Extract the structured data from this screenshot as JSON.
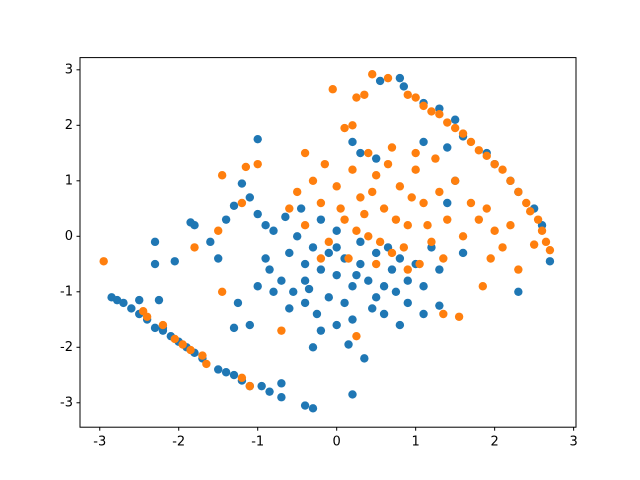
{
  "chart_data": {
    "type": "scatter",
    "xlim": [
      -3.25,
      3.03
    ],
    "ylim": [
      -3.44,
      3.22
    ],
    "xticks": [
      -3,
      -2,
      -1,
      0,
      1,
      2,
      3
    ],
    "yticks": [
      -3,
      -2,
      -1,
      0,
      1,
      2,
      3
    ],
    "grid": false,
    "series": [
      {
        "color": "#1f77b4",
        "x": [
          -2.85,
          -2.78,
          -2.7,
          -2.6,
          -2.5,
          -2.4,
          -2.3,
          -2.2,
          -2.1,
          -2.0,
          -1.9,
          -1.8,
          -1.7,
          -1.5,
          -1.4,
          -1.3,
          -1.2,
          -1.1,
          -0.95,
          -0.85,
          -0.7,
          -0.3,
          -0.4,
          -0.7,
          -2.5,
          -2.25,
          -2.2,
          -2.3,
          -2.3,
          -2.05,
          -1.8,
          -1.85,
          -1.6,
          -1.5,
          -1.4,
          -1.3,
          -1.2,
          -1.1,
          -1.0,
          -1.0,
          -0.9,
          -0.85,
          -1.25,
          -1.3,
          -1.1,
          -0.8,
          -0.6,
          -0.4,
          -0.2,
          0.0,
          0.2,
          0.35,
          0.2,
          0.15,
          0.6,
          0.8,
          1.1,
          1.3,
          2.3,
          2.7,
          -0.3,
          -0.4,
          -0.6,
          -0.5,
          -0.4,
          -0.3,
          -0.2,
          -0.1,
          0.0,
          0.1,
          0.2,
          0.3,
          0.4,
          0.5,
          0.6,
          0.7,
          0.8,
          0.9,
          1.0,
          1.1,
          -0.7,
          -0.8,
          -0.65,
          -0.45,
          -0.2,
          0.0,
          0.3,
          -0.1,
          0.1,
          0.5,
          0.9,
          1.2,
          1.3,
          1.4,
          1.5,
          1.6,
          -0.55,
          -0.9,
          -1.0,
          -0.25,
          0.45,
          0.75,
          0.0,
          -0.35,
          0.25,
          0.65,
          0.55,
          0.8,
          0.85,
          1.1,
          1.3,
          1.5,
          1.6,
          1.9,
          2.0,
          2.2,
          2.3,
          2.5,
          2.6,
          1.4,
          1.1,
          0.3,
          0.2,
          0.5
        ],
        "values": [
          -1.1,
          -1.15,
          -1.2,
          -1.3,
          -1.4,
          -1.5,
          -1.65,
          -1.7,
          -1.8,
          -1.9,
          -2.0,
          -2.1,
          -2.2,
          -2.4,
          -2.45,
          -2.5,
          -2.6,
          -2.7,
          -2.7,
          -2.8,
          -2.9,
          -3.1,
          -3.05,
          -2.65,
          -1.15,
          -1.15,
          -1.65,
          -0.5,
          -0.1,
          -0.45,
          0.2,
          0.25,
          -0.1,
          -0.4,
          0.3,
          0.55,
          0.95,
          0.7,
          1.75,
          0.4,
          0.2,
          -0.6,
          -1.2,
          -1.65,
          -1.6,
          -1.0,
          -1.3,
          -1.2,
          -1.7,
          -1.6,
          -1.5,
          -2.2,
          -2.85,
          -1.95,
          -1.4,
          -1.6,
          -1.4,
          -1.25,
          -1.0,
          -0.45,
          -2.0,
          -0.8,
          -0.3,
          0.0,
          -0.5,
          -0.2,
          -0.6,
          -0.3,
          -0.7,
          -0.4,
          -0.9,
          -0.5,
          -0.8,
          -0.3,
          -0.9,
          -0.6,
          -0.4,
          -0.8,
          -0.5,
          -0.9,
          -0.8,
          0.1,
          0.35,
          0.5,
          0.3,
          0.1,
          -0.1,
          -1.1,
          -1.2,
          -1.1,
          -1.2,
          -0.2,
          -0.6,
          0.6,
          1.0,
          -0.3,
          -1.0,
          -0.4,
          -0.9,
          -1.4,
          -1.3,
          -1.0,
          -0.2,
          -0.95,
          -0.7,
          -0.2,
          2.8,
          2.85,
          2.7,
          2.4,
          2.3,
          2.1,
          1.8,
          1.5,
          1.3,
          1.0,
          0.8,
          0.5,
          0.2,
          1.6,
          1.7,
          1.5,
          1.7,
          1.4
        ]
      },
      {
        "color": "#ff7f0e",
        "x": [
          0.45,
          0.65,
          0.9,
          1.0,
          1.1,
          1.2,
          1.3,
          1.4,
          1.5,
          1.6,
          1.7,
          1.8,
          1.9,
          2.0,
          2.1,
          2.2,
          2.3,
          2.4,
          2.45,
          2.55,
          2.6,
          2.65,
          2.7,
          2.5,
          0.35,
          0.25,
          -2.45,
          -2.4,
          -2.2,
          -2.05,
          -1.95,
          -1.85,
          -1.7,
          -1.65,
          -1.1,
          -1.2,
          -2.95,
          -0.05,
          -1.45,
          -0.7,
          0.25,
          1.85,
          1.55,
          1.35,
          2.3,
          1.95,
          -1.5,
          -1.45,
          -1.15,
          -1.0,
          -0.4,
          0.1,
          0.2,
          -1.8,
          -1.2,
          -0.6,
          -0.5,
          -0.4,
          -0.3,
          -0.2,
          -0.1,
          0.0,
          0.1,
          0.2,
          0.3,
          0.4,
          0.5,
          0.6,
          0.7,
          0.8,
          0.9,
          1.0,
          1.1,
          1.2,
          1.3,
          1.4,
          1.5,
          1.6,
          1.7,
          1.8,
          1.9,
          2.0,
          0.15,
          0.35,
          0.55,
          0.75,
          0.95,
          1.15,
          0.45,
          0.65,
          0.85,
          1.05,
          0.25,
          0.05,
          -0.15,
          0.4,
          0.7,
          1.0,
          1.25,
          0.9,
          0.5,
          -0.2,
          1.35,
          2.1,
          2.2
        ],
        "values": [
          2.92,
          2.85,
          2.55,
          2.5,
          2.35,
          2.25,
          2.2,
          2.05,
          1.95,
          1.85,
          1.7,
          1.55,
          1.45,
          1.3,
          1.2,
          1.0,
          0.8,
          0.6,
          0.45,
          0.3,
          0.1,
          -0.1,
          -0.25,
          -0.15,
          2.55,
          2.5,
          -1.35,
          -1.45,
          -1.6,
          -1.85,
          -1.95,
          -2.05,
          -2.15,
          -2.3,
          -2.7,
          -2.55,
          -0.45,
          2.65,
          -1.0,
          -1.7,
          -1.8,
          -0.9,
          -1.45,
          -1.4,
          -0.6,
          -0.4,
          0.1,
          1.1,
          1.25,
          1.3,
          1.5,
          1.95,
          2.0,
          -0.2,
          0.6,
          0.5,
          0.8,
          0.2,
          1.0,
          0.6,
          -0.1,
          0.9,
          0.3,
          1.2,
          0.7,
          0.0,
          1.1,
          0.5,
          -0.3,
          0.9,
          0.2,
          1.2,
          0.6,
          -0.1,
          0.8,
          0.3,
          1.0,
          0.0,
          0.6,
          0.3,
          0.5,
          0.1,
          -0.4,
          0.4,
          -0.1,
          0.3,
          0.7,
          0.2,
          0.8,
          1.3,
          -0.2,
          -0.5,
          0.1,
          0.5,
          1.3,
          1.5,
          1.6,
          1.5,
          1.4,
          -0.6,
          -0.5,
          -0.4,
          -0.4,
          -0.2,
          0.2
        ]
      }
    ]
  }
}
